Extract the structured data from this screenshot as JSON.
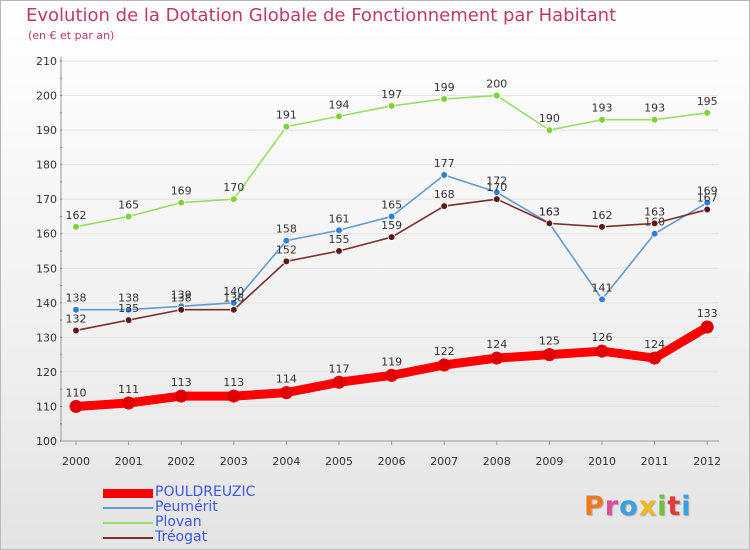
{
  "header": {
    "title": "Evolution de la Dotation Globale de Fonctionnement par Habitant",
    "subtitle": "(en € et par an)"
  },
  "logo": {
    "text": "Proxiti",
    "colors": [
      "#f07a1a",
      "#d94f9a",
      "#3aa0e0",
      "#f0b91c",
      "#6fc23a",
      "#e03a3a",
      "#3aa0e0"
    ]
  },
  "chart_data": {
    "type": "line",
    "title": "Evolution de la Dotation Globale de Fonctionnement par Habitant",
    "subtitle": "(en € et par an)",
    "xlabel": "",
    "ylabel": "",
    "x": [
      "2000",
      "2001",
      "2002",
      "2003",
      "2004",
      "2005",
      "2006",
      "2007",
      "2008",
      "2009",
      "2010",
      "2011",
      "2012"
    ],
    "ylim": [
      100,
      210
    ],
    "yticks": [
      100,
      110,
      120,
      130,
      140,
      150,
      160,
      170,
      180,
      190,
      200,
      210
    ],
    "grid": "horizontal",
    "legend_position": "bottom-left",
    "series": [
      {
        "name": "POULDREUZIC",
        "color": "#ff0000",
        "point_color": "#e00000",
        "emphasis": true,
        "values": [
          110,
          111,
          113,
          113,
          114,
          117,
          119,
          122,
          124,
          125,
          126,
          124,
          133
        ]
      },
      {
        "name": "Peumérit",
        "color": "#6699cc",
        "point_color": "#2f7fd6",
        "emphasis": false,
        "values": [
          138,
          138,
          139,
          140,
          158,
          161,
          165,
          177,
          172,
          163,
          141,
          160,
          169
        ]
      },
      {
        "name": "Plovan",
        "color": "#99dd66",
        "point_color": "#7dd13a",
        "emphasis": false,
        "values": [
          162,
          165,
          169,
          170,
          191,
          194,
          197,
          199,
          200,
          190,
          193,
          193,
          195
        ]
      },
      {
        "name": "Tréogat",
        "color": "#7a2f2f",
        "point_color": "#5a1a1a",
        "emphasis": false,
        "values": [
          132,
          135,
          138,
          138,
          152,
          155,
          159,
          168,
          170,
          163,
          162,
          163,
          167
        ]
      }
    ]
  }
}
